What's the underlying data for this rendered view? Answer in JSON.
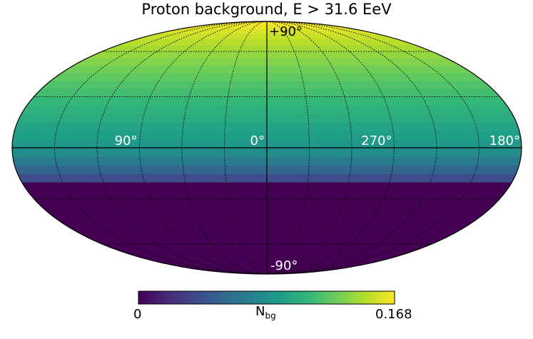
{
  "chart_data": {
    "type": "heatmap",
    "projection": "mollweide",
    "title": "Proton background, E > 31.6 EeV",
    "colormap": [
      "#440154",
      "#482878",
      "#3e4989",
      "#31688e",
      "#26828e",
      "#1f9e89",
      "#35b779",
      "#6ece58",
      "#b5de2b",
      "#fde725"
    ],
    "colorbar": {
      "min": 0,
      "max": 0.168,
      "min_label": "0",
      "max_label": "0.168",
      "label": "N",
      "label_sub": "bg"
    },
    "longitude_labels": [
      "90°",
      "0°",
      "270°",
      "180°"
    ],
    "latitude_labels": {
      "north": "+90°",
      "south": "-90°"
    },
    "grid": true,
    "declination_profile": {
      "dec_deg": [
        -90,
        -20,
        -15,
        -10,
        -5,
        0,
        5,
        10,
        15,
        20,
        25,
        30,
        35,
        40,
        45,
        50,
        55,
        60,
        65,
        70,
        75,
        80,
        85,
        90
      ],
      "value": [
        0.0,
        0.0,
        0.04,
        0.055,
        0.07,
        0.082,
        0.09,
        0.094,
        0.098,
        0.103,
        0.107,
        0.112,
        0.117,
        0.121,
        0.126,
        0.131,
        0.136,
        0.14,
        0.145,
        0.15,
        0.154,
        0.159,
        0.163,
        0.168
      ]
    }
  }
}
